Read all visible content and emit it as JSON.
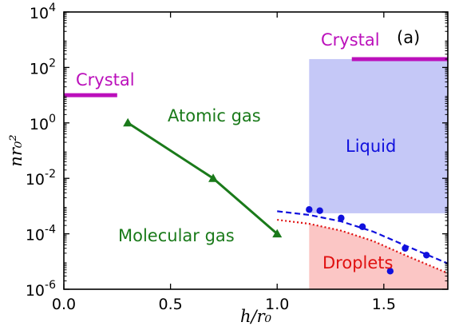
{
  "chart_data": {
    "type": "scatter",
    "panel_label": "(a)",
    "xlabel": "h/r₀",
    "ylabel": "nr₀²",
    "xlim": [
      0.0,
      1.8
    ],
    "ylim": [
      1e-06,
      10000.0
    ],
    "y_scale": "log",
    "x_ticks": [
      {
        "value": 0.0,
        "label": "0.0"
      },
      {
        "value": 0.5,
        "label": "0.5"
      },
      {
        "value": 1.0,
        "label": "1.0"
      },
      {
        "value": 1.5,
        "label": "1.5"
      }
    ],
    "y_ticks": [
      {
        "value": 1e-06,
        "base": "10",
        "exp": "-6"
      },
      {
        "value": 0.0001,
        "base": "10",
        "exp": "-4"
      },
      {
        "value": 0.01,
        "base": "10",
        "exp": "-2"
      },
      {
        "value": 1.0,
        "base": "10",
        "exp": "0"
      },
      {
        "value": 100.0,
        "base": "10",
        "exp": "2"
      },
      {
        "value": 10000.0,
        "base": "10",
        "exp": "4"
      }
    ],
    "regions": [
      {
        "name": "Liquid",
        "x_range": [
          1.15,
          1.8
        ],
        "y_range": [
          0.00055,
          200
        ],
        "color": "#c5c8f7"
      },
      {
        "name": "Droplets",
        "x_range": [
          1.15,
          1.8
        ],
        "lower_curve": "dotted",
        "color": "#fbc6c5"
      }
    ],
    "series": [
      {
        "style": "line-marker",
        "color": "#1a7a1a",
        "marker": "triangle",
        "x": [
          0.3,
          0.7,
          1.0
        ],
        "y": [
          1.0,
          0.01,
          0.0001
        ]
      },
      {
        "style": "marker",
        "color": "#1010dd",
        "marker": "circle",
        "x": [
          1.15,
          1.2,
          1.3,
          1.4,
          1.53,
          1.6,
          1.7
        ],
        "y": [
          0.00075,
          0.00068,
          0.00037,
          0.00018,
          4.5e-06,
          3e-05,
          1.7e-05
        ]
      },
      {
        "style": "dashed",
        "color": "#1010dd",
        "x": [
          1.0,
          1.15,
          1.3,
          1.45,
          1.6,
          1.8
        ],
        "y": [
          0.00065,
          0.00048,
          0.00028,
          0.00012,
          3.8e-05,
          8.5e-06
        ]
      },
      {
        "style": "dotted",
        "color": "#e01010",
        "x": [
          1.0,
          1.15,
          1.3,
          1.45,
          1.6,
          1.8
        ],
        "y": [
          0.00032,
          0.00023,
          0.00013,
          5.5e-05,
          1.7e-05,
          3.8e-06
        ]
      }
    ],
    "segments": [
      {
        "name": "Crystal",
        "x_range": [
          0.0,
          0.25
        ],
        "y": 10,
        "color": "#bb10bb"
      },
      {
        "name": "Crystal",
        "x_range": [
          1.35,
          1.8
        ],
        "y": 200,
        "color": "#bb10bb"
      }
    ],
    "annotations": [
      {
        "text": "Crystal",
        "color": "#bb10bb"
      },
      {
        "text": "Crystal",
        "color": "#bb10bb"
      },
      {
        "text": "Atomic gas",
        "color": "#1a7a1a"
      },
      {
        "text": "Molecular gas",
        "color": "#1a7a1a"
      },
      {
        "text": "Liquid",
        "color": "#1010dd"
      },
      {
        "text": "Droplets",
        "color": "#e01010"
      }
    ]
  }
}
